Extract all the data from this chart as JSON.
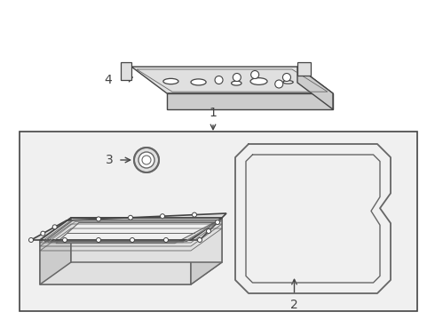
{
  "background_color": "#ffffff",
  "line_color": "#666666",
  "dark_line": "#444444",
  "mid_gray": "#888888",
  "fill_white": "#ffffff",
  "fill_light": "#f0f0f0",
  "fill_mid": "#e0e0e0",
  "fill_dark": "#cccccc",
  "label_1": "1",
  "label_2": "2",
  "label_3": "3",
  "label_4": "4",
  "figsize": [
    4.9,
    3.6
  ],
  "dpi": 100
}
